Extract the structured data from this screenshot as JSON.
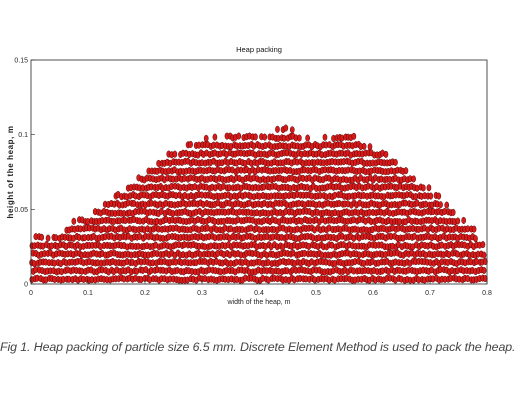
{
  "chart_data": {
    "type": "scatter",
    "title": "Heap packing",
    "xlabel": "width of the heap,  m",
    "ylabel": "height of the heap,  m",
    "xlim": [
      0,
      0.8
    ],
    "ylim": [
      0,
      0.15
    ],
    "xticks": [
      "0",
      "0.1",
      "0.2",
      "0.3",
      "0.4",
      "0.5",
      "0.6",
      "0.7",
      "0.8"
    ],
    "yticks": [
      "0",
      "0.05",
      "0.1",
      "0.15"
    ],
    "grid": false,
    "legend": "none",
    "marker_color": "#d91a1a",
    "marker_edge_color": "#3a0000",
    "particle_size_m": 0.0065,
    "heap_profile": {
      "x": [
        0,
        0.05,
        0.1,
        0.15,
        0.2,
        0.25,
        0.3,
        0.35,
        0.4,
        0.45,
        0.5,
        0.55,
        0.6,
        0.65,
        0.7,
        0.75,
        0.8
      ],
      "y": [
        0.03,
        0.034,
        0.045,
        0.06,
        0.075,
        0.088,
        0.095,
        0.1,
        0.099,
        0.102,
        0.098,
        0.1,
        0.092,
        0.078,
        0.063,
        0.045,
        0.025
      ]
    }
  },
  "caption": "Fig 1. Heap packing of particle size 6.5 mm. Discrete Element Method is used to pack the heap."
}
